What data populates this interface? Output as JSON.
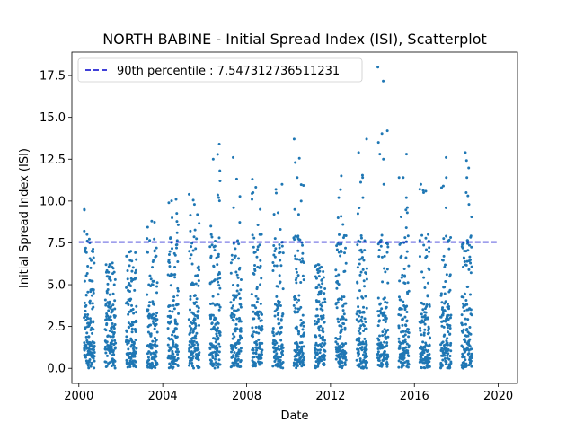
{
  "chart_data": {
    "type": "scatter",
    "title": "NORTH BABINE - Initial Spread Index (ISI), Scatterplot",
    "xlabel": "Date",
    "ylabel": "Initial Spread Index (ISI)",
    "xlim": [
      "1999-09-01",
      "2020-12-01"
    ],
    "ylim": [
      -0.9,
      18.9
    ],
    "x_ticks": [
      "2000",
      "2004",
      "2008",
      "2012",
      "2016",
      "2020"
    ],
    "y_ticks": [
      "0.0",
      "2.5",
      "5.0",
      "7.5",
      "10.0",
      "12.5",
      "15.0",
      "17.5"
    ],
    "grid": false,
    "legend": {
      "placement": "top-left",
      "entries": [
        "90th percentile : 7.547312736511231"
      ]
    },
    "reference_line": {
      "name": "90th percentile : 7.547312736511231",
      "y": 7.547312736511231,
      "x_start": "2000",
      "x_end": "2020",
      "style": "dashed",
      "color": "#0000cc"
    },
    "series_color": "#1f77b4",
    "season_months": "April to October each year",
    "series": [
      {
        "values_by_year": [
          {
            "year": 2000,
            "max": 9.5,
            "notable": [
              9.5,
              8.2,
              7.5,
              6.0,
              4.5,
              3.2
            ]
          },
          {
            "year": 2001,
            "max": 6.3,
            "notable": [
              6.3,
              5.5,
              5.0,
              3.5
            ]
          },
          {
            "year": 2002,
            "max": 7.0,
            "notable": [
              7.0,
              6.5,
              5.8,
              4.6
            ]
          },
          {
            "year": 2003,
            "max": 8.8,
            "notable": [
              8.8,
              7.0,
              5.0
            ]
          },
          {
            "year": 2004,
            "max": 10.1,
            "notable": [
              10.1,
              9.0,
              8.1,
              6.8
            ]
          },
          {
            "year": 2005,
            "max": 10.4,
            "notable": [
              10.4,
              9.8,
              8.2,
              6.0
            ]
          },
          {
            "year": 2006,
            "max": 13.4,
            "notable": [
              13.4,
              12.5,
              11.2,
              10.2,
              8.5,
              7.8
            ]
          },
          {
            "year": 2007,
            "max": 12.6,
            "notable": [
              12.6,
              6.0,
              5.3
            ]
          },
          {
            "year": 2008,
            "max": 11.3,
            "notable": [
              11.3,
              10.1,
              9.5,
              8.0
            ]
          },
          {
            "year": 2009,
            "max": 11.0,
            "notable": [
              11.0,
              10.7,
              9.3,
              8.3
            ]
          },
          {
            "year": 2010,
            "max": 13.7,
            "notable": [
              13.7,
              12.3,
              11.4,
              10.0,
              9.2
            ]
          },
          {
            "year": 2011,
            "max": 6.2,
            "notable": [
              6.2,
              5.3,
              4.0
            ]
          },
          {
            "year": 2012,
            "max": 11.5,
            "notable": [
              11.5,
              10.2,
              9.0,
              8.6
            ]
          },
          {
            "year": 2013,
            "max": 13.7,
            "notable": [
              13.7,
              12.9,
              11.4,
              10.2
            ]
          },
          {
            "year": 2014,
            "max": 18.0,
            "notable": [
              18.0,
              14.2,
              13.5,
              12.5,
              11.0
            ]
          },
          {
            "year": 2015,
            "max": 12.8,
            "notable": [
              12.8,
              11.4,
              10.2,
              9.3
            ]
          },
          {
            "year": 2016,
            "max": 11.0,
            "notable": [
              11.0,
              10.5,
              8.0
            ]
          },
          {
            "year": 2017,
            "max": 12.6,
            "notable": [
              12.6,
              11.4,
              10.9,
              9.6
            ]
          },
          {
            "year": 2018,
            "max": 12.9,
            "notable": [
              12.9,
              11.4,
              10.5,
              9.8
            ]
          }
        ]
      }
    ]
  }
}
